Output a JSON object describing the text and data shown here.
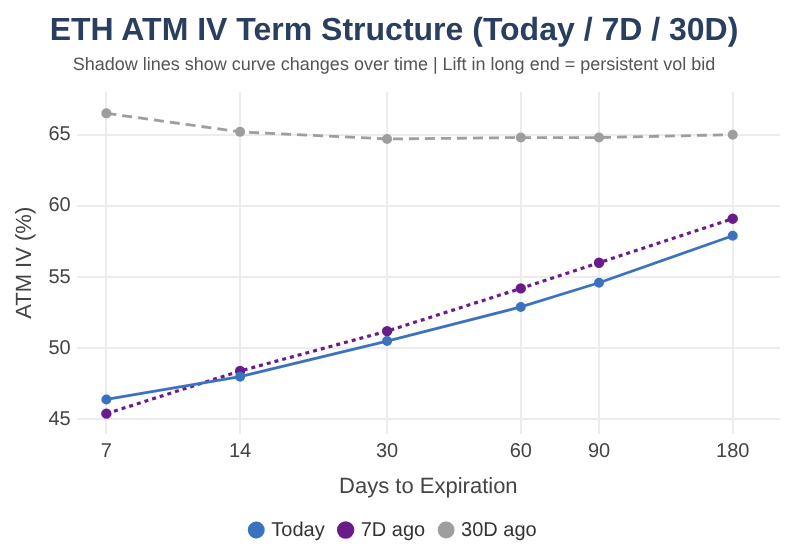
{
  "chart_data": {
    "type": "line",
    "title": "ETH ATM IV Term Structure (Today / 7D / 30D)",
    "subtitle": "Shadow lines show curve changes over time | Lift in long end = persistent vol bid",
    "xlabel": "Days to Expiration",
    "ylabel": "ATM IV (%)",
    "x": [
      7,
      14,
      30,
      60,
      90,
      180
    ],
    "series": [
      {
        "name": "Today",
        "color": "#3a72c0",
        "line_style": "solid",
        "values": [
          46.4,
          48.0,
          50.5,
          52.9,
          54.6,
          57.9
        ]
      },
      {
        "name": "7D ago",
        "color": "#6a1b8a",
        "line_style": "dotted",
        "values": [
          45.4,
          48.4,
          51.2,
          54.2,
          56.0,
          59.1
        ]
      },
      {
        "name": "30D ago",
        "color": "#9e9e9e",
        "line_style": "dashed",
        "values": [
          66.5,
          65.2,
          64.7,
          64.8,
          64.8,
          65.0
        ]
      }
    ],
    "log": "x",
    "xlim": [
      6,
      230
    ],
    "xticks": [
      7,
      14,
      30,
      60,
      90,
      180
    ],
    "ylim": [
      44,
      68
    ],
    "yticks": [
      45,
      50,
      55,
      60,
      65
    ],
    "grid": true,
    "legend": "bottom",
    "marker": "circle"
  }
}
